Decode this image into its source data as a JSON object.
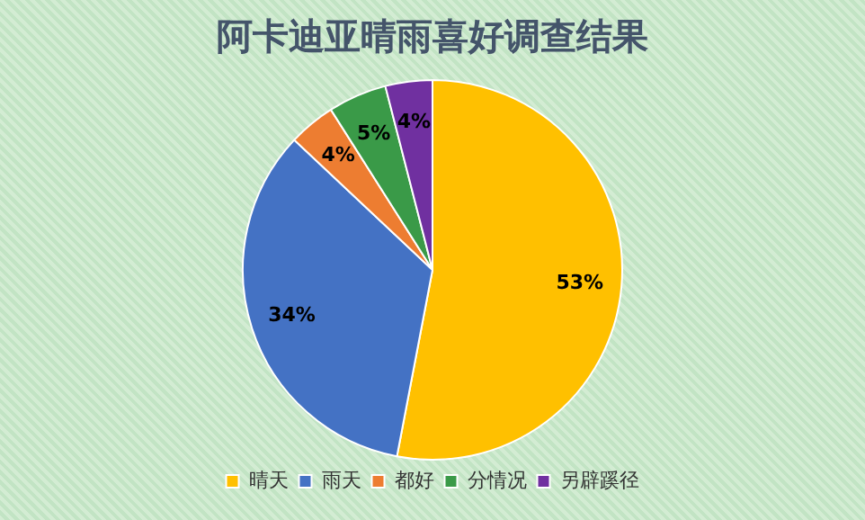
{
  "chart_data": {
    "type": "pie",
    "title": "阿卡迪亚晴雨喜好调查结果",
    "categories": [
      "晴天",
      "雨天",
      "都好",
      "分情况",
      "另辟蹊径"
    ],
    "values": [
      53,
      34,
      4,
      5,
      4
    ],
    "colors": [
      "#ffc000",
      "#4472c4",
      "#ed7d31",
      "#3a9a48",
      "#7030a0"
    ],
    "value_labels": [
      "53%",
      "34%",
      "4%",
      "5%",
      "4%"
    ],
    "legend": "bottom"
  }
}
